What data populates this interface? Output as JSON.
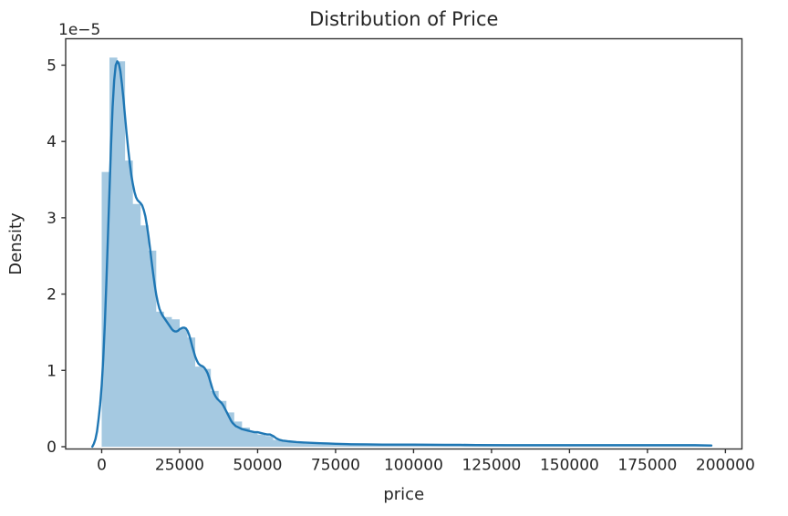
{
  "figure": {
    "title": "Distribution of Price",
    "xlabel": "price",
    "ylabel": "Density",
    "offset_text": "1e−5",
    "background": "#ffffff",
    "text_color": "#262626",
    "spine_color": "#333333"
  },
  "chart_data": {
    "type": "bar",
    "subtype": "histogram_with_kde_overlay",
    "title": "Distribution of Price",
    "xlabel": "price",
    "ylabel": "Density",
    "y_offset_text": "1e−5",
    "y_unit_scale": 1e-05,
    "xlim": [
      -11550,
      205300
    ],
    "ylim": [
      -0.03,
      5.346
    ],
    "grid": false,
    "legend": null,
    "xticks": [
      0,
      25000,
      50000,
      75000,
      100000,
      125000,
      150000,
      175000,
      200000
    ],
    "xticklabels": [
      "0",
      "25000",
      "50000",
      "75000",
      "100000",
      "125000",
      "150000",
      "175000",
      "200000"
    ],
    "yticks": [
      0,
      1,
      2,
      3,
      4,
      5
    ],
    "yticklabels": [
      "0",
      "1",
      "2",
      "3",
      "4",
      "5"
    ],
    "colors": {
      "kde_line": "#1f77b4",
      "hist_fill": "#1f77b4",
      "hist_fill_alpha": 0.4
    },
    "histogram": {
      "bin_start": 0,
      "bin_width": 2500,
      "densities_1e5": [
        3.6,
        5.1,
        5.05,
        3.75,
        3.18,
        2.9,
        2.57,
        1.77,
        1.7,
        1.67,
        1.55,
        1.43,
        1.05,
        1.02,
        0.73,
        0.6,
        0.45,
        0.33,
        0.25,
        0.2,
        0.16,
        0.14,
        0.09,
        0.07,
        0.06,
        0.05,
        0.04,
        0.035,
        0.03,
        0.03,
        0.025,
        0.025,
        0.02,
        0.02,
        0.02,
        0.02,
        0.02,
        0.02,
        0.02,
        0.02,
        0.02,
        0.02,
        0.02,
        0.02,
        0.02,
        0.02,
        0.02,
        0.02,
        0.02,
        0.02,
        0.02,
        0.02,
        0.02,
        0.02,
        0.02,
        0.02,
        0.02,
        0.02,
        0.02,
        0.02,
        0.02,
        0.02,
        0.02,
        0.02,
        0.02,
        0.02,
        0.02,
        0.02,
        0.02,
        0.02,
        0.02,
        0.02,
        0.02,
        0.02,
        0.02,
        0.02,
        0.02,
        0.02
      ]
    },
    "kde": {
      "points_x_density1e5": [
        [
          -3000,
          0
        ],
        [
          -2500,
          0.04
        ],
        [
          -2000,
          0.1
        ],
        [
          -1500,
          0.2
        ],
        [
          -1000,
          0.36
        ],
        [
          -500,
          0.55
        ],
        [
          0,
          0.8
        ],
        [
          500,
          1.15
        ],
        [
          1000,
          1.6
        ],
        [
          1500,
          2.15
        ],
        [
          2000,
          2.75
        ],
        [
          2500,
          3.35
        ],
        [
          3000,
          3.95
        ],
        [
          3500,
          4.45
        ],
        [
          4000,
          4.8
        ],
        [
          4500,
          5.0
        ],
        [
          5000,
          5.05
        ],
        [
          5500,
          5.02
        ],
        [
          6000,
          4.92
        ],
        [
          6500,
          4.75
        ],
        [
          7000,
          4.55
        ],
        [
          7500,
          4.32
        ],
        [
          8000,
          4.1
        ],
        [
          8500,
          3.9
        ],
        [
          9000,
          3.72
        ],
        [
          9500,
          3.56
        ],
        [
          10000,
          3.44
        ],
        [
          10500,
          3.34
        ],
        [
          11000,
          3.27
        ],
        [
          11500,
          3.23
        ],
        [
          12000,
          3.21
        ],
        [
          12500,
          3.19
        ],
        [
          13000,
          3.16
        ],
        [
          13500,
          3.1
        ],
        [
          14000,
          3.02
        ],
        [
          14500,
          2.9
        ],
        [
          15000,
          2.76
        ],
        [
          15500,
          2.6
        ],
        [
          16000,
          2.43
        ],
        [
          16500,
          2.27
        ],
        [
          17000,
          2.12
        ],
        [
          17500,
          1.99
        ],
        [
          18000,
          1.89
        ],
        [
          18500,
          1.81
        ],
        [
          19000,
          1.76
        ],
        [
          19500,
          1.72
        ],
        [
          20000,
          1.69
        ],
        [
          20500,
          1.66
        ],
        [
          21000,
          1.63
        ],
        [
          21500,
          1.6
        ],
        [
          22000,
          1.57
        ],
        [
          22500,
          1.54
        ],
        [
          23000,
          1.52
        ],
        [
          23500,
          1.51
        ],
        [
          24000,
          1.51
        ],
        [
          24500,
          1.52
        ],
        [
          25000,
          1.54
        ],
        [
          25500,
          1.55
        ],
        [
          26000,
          1.56
        ],
        [
          26500,
          1.56
        ],
        [
          27000,
          1.55
        ],
        [
          27500,
          1.52
        ],
        [
          28000,
          1.47
        ],
        [
          28500,
          1.4
        ],
        [
          29000,
          1.32
        ],
        [
          29500,
          1.25
        ],
        [
          30000,
          1.18
        ],
        [
          30500,
          1.13
        ],
        [
          31000,
          1.09
        ],
        [
          31500,
          1.07
        ],
        [
          32000,
          1.06
        ],
        [
          32500,
          1.05
        ],
        [
          33000,
          1.03
        ],
        [
          33500,
          1.0
        ],
        [
          34000,
          0.96
        ],
        [
          34500,
          0.9
        ],
        [
          35000,
          0.83
        ],
        [
          35500,
          0.76
        ],
        [
          36000,
          0.7
        ],
        [
          36500,
          0.66
        ],
        [
          37000,
          0.63
        ],
        [
          37500,
          0.61
        ],
        [
          38000,
          0.59
        ],
        [
          38500,
          0.57
        ],
        [
          39000,
          0.54
        ],
        [
          39500,
          0.5
        ],
        [
          40000,
          0.46
        ],
        [
          40500,
          0.42
        ],
        [
          41000,
          0.38
        ],
        [
          41500,
          0.34
        ],
        [
          42000,
          0.31
        ],
        [
          42500,
          0.29
        ],
        [
          43000,
          0.27
        ],
        [
          43500,
          0.26
        ],
        [
          44000,
          0.25
        ],
        [
          45000,
          0.23
        ],
        [
          46000,
          0.22
        ],
        [
          47000,
          0.21
        ],
        [
          48000,
          0.2
        ],
        [
          49000,
          0.19
        ],
        [
          50000,
          0.19
        ],
        [
          51000,
          0.18
        ],
        [
          52000,
          0.17
        ],
        [
          53000,
          0.16
        ],
        [
          54000,
          0.16
        ],
        [
          55000,
          0.14
        ],
        [
          56000,
          0.11
        ],
        [
          57000,
          0.09
        ],
        [
          58000,
          0.08
        ],
        [
          59000,
          0.075
        ],
        [
          60000,
          0.07
        ],
        [
          62500,
          0.06
        ],
        [
          65000,
          0.055
        ],
        [
          67500,
          0.05
        ],
        [
          70000,
          0.045
        ],
        [
          72500,
          0.042
        ],
        [
          75000,
          0.038
        ],
        [
          80000,
          0.032
        ],
        [
          85000,
          0.03
        ],
        [
          90000,
          0.028
        ],
        [
          95000,
          0.028
        ],
        [
          100000,
          0.028
        ],
        [
          105000,
          0.026
        ],
        [
          110000,
          0.025
        ],
        [
          115000,
          0.024
        ],
        [
          120000,
          0.022
        ],
        [
          130000,
          0.02
        ],
        [
          140000,
          0.02
        ],
        [
          150000,
          0.02
        ],
        [
          160000,
          0.02
        ],
        [
          170000,
          0.02
        ],
        [
          180000,
          0.02
        ],
        [
          190000,
          0.02
        ],
        [
          195500,
          0.015
        ]
      ]
    }
  }
}
